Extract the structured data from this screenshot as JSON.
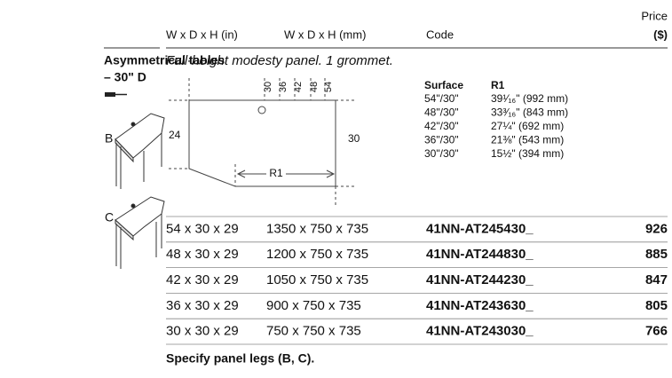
{
  "header": {
    "columns": [
      "W x D x H (in)",
      "W x D x H (mm)",
      "Code"
    ],
    "price": [
      "Price",
      "($)"
    ]
  },
  "section": {
    "title": "Asymmetrical tables",
    "subtitle": "– 30\" D",
    "description": "Full-height modesty panel. 1 grommet.",
    "variants": [
      "B",
      "C"
    ]
  },
  "diagram": {
    "widths": [
      "30",
      "36",
      "42",
      "48",
      "54"
    ],
    "depth_left": "24",
    "depth_right": "30",
    "radius_label": "R1",
    "surface_table": {
      "headers": [
        "Surface",
        "R1"
      ],
      "rows": [
        [
          "54\"/30\"",
          "39¹⁄₁₆\" (992 mm)"
        ],
        [
          "48\"/30\"",
          "33³⁄₁₆\" (843 mm)"
        ],
        [
          "42\"/30\"",
          "27¼\" (692 mm)"
        ],
        [
          "36\"/30\"",
          "21⅜\" (543 mm)"
        ],
        [
          "30\"/30\"",
          "15½\" (394 mm)"
        ]
      ]
    }
  },
  "table": {
    "rows": [
      [
        "54 x 30 x 29",
        "1350 x 750 x 735",
        "41NN-AT245430_",
        926
      ],
      [
        "48 x 30 x 29",
        "1200 x 750 x 735",
        "41NN-AT244830_",
        885
      ],
      [
        "42 x 30 x 29",
        "1050 x 750 x 735",
        "41NN-AT244230_",
        847
      ],
      [
        "36 x 30 x 29",
        "900 x 750 x 735",
        "41NN-AT243630_",
        805
      ],
      [
        "30 x 30 x 29",
        "750 x 750 x 735",
        "41NN-AT243030_",
        766
      ]
    ]
  },
  "footer": "Specify panel legs (B, C)."
}
